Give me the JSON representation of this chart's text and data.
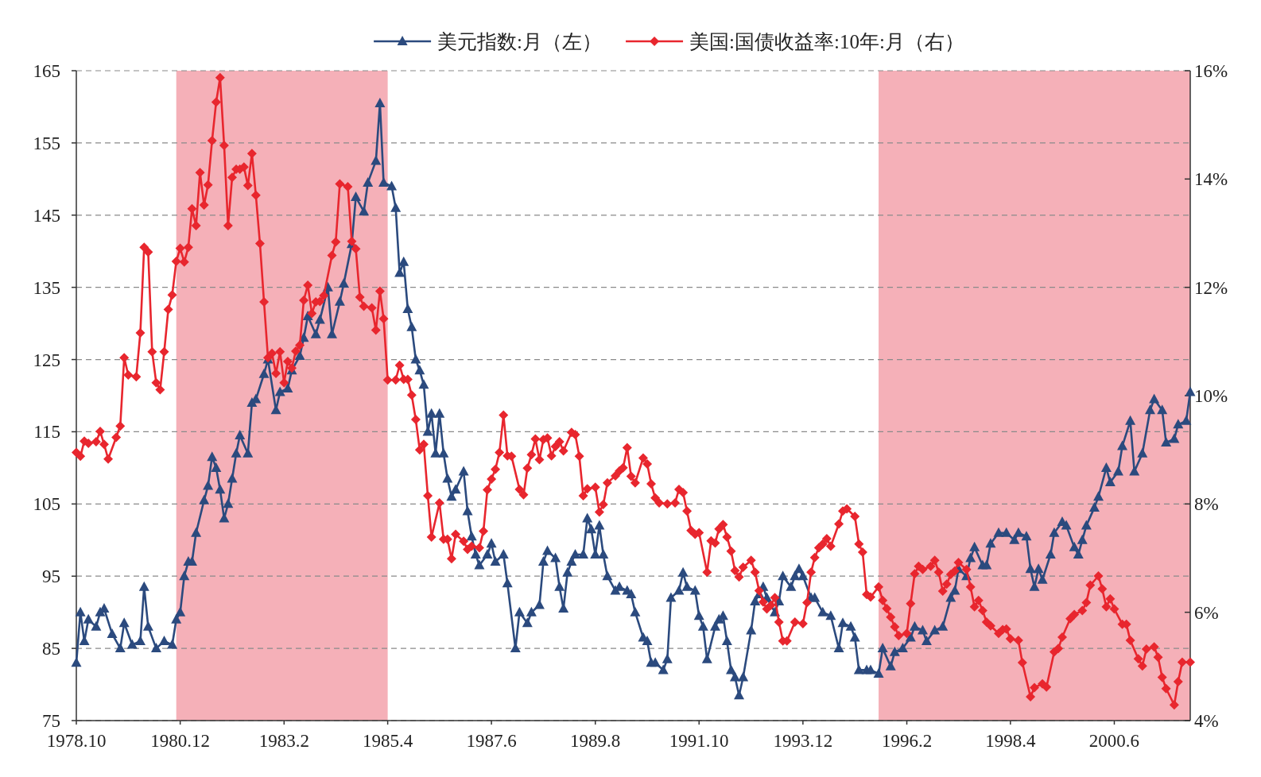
{
  "chart_data": {
    "type": "line",
    "xlim": [
      "1978-10",
      "2002-01"
    ],
    "xticks": [
      {
        "value": "1978-10",
        "label": "1978.10"
      },
      {
        "value": "1980-12",
        "label": "1980.12"
      },
      {
        "value": "1983-02",
        "label": "1983.2"
      },
      {
        "value": "1985-04",
        "label": "1985.4"
      },
      {
        "value": "1987-06",
        "label": "1987.6"
      },
      {
        "value": "1989-08",
        "label": "1989.8"
      },
      {
        "value": "1991-10",
        "label": "1991.10"
      },
      {
        "value": "1993-12",
        "label": "1993.12"
      },
      {
        "value": "1996-02",
        "label": "1996.2"
      },
      {
        "value": "1998-04",
        "label": "1998.4"
      },
      {
        "value": "2000-06",
        "label": "2000.6"
      }
    ],
    "ylim": [
      75,
      165
    ],
    "yticks": [
      75,
      85,
      95,
      105,
      115,
      125,
      135,
      145,
      155,
      165
    ],
    "y2lim": [
      4,
      16
    ],
    "y2ticks": [
      {
        "value": 4,
        "label": "4%"
      },
      {
        "value": 6,
        "label": "6%"
      },
      {
        "value": 8,
        "label": "8%"
      },
      {
        "value": 10,
        "label": "10%"
      },
      {
        "value": 12,
        "label": "12%"
      },
      {
        "value": 14,
        "label": "14%"
      },
      {
        "value": 16,
        "label": "16%"
      }
    ],
    "grid": "y",
    "legend": "top",
    "line_style": "solid",
    "bands": [
      {
        "axis": "x",
        "from": "1980-11",
        "to": "1985-04",
        "color": "#f5b0b8"
      },
      {
        "axis": "x",
        "from": "1995-07",
        "to": "2002-01",
        "color": "#f5b0b8"
      }
    ],
    "series": [
      {
        "name": "美元指数:月（左）",
        "color": "#2b4a7e",
        "marker": "triangle",
        "x": [
          "1978-10",
          "1978-11",
          "1978-12",
          "1979-01",
          "1979-03",
          "1979-04",
          "1979-05",
          "1979-07",
          "1979-09",
          "1979-10",
          "1979-12",
          "1980-02",
          "1980-03",
          "1980-04",
          "1980-06",
          "1980-08",
          "1980-10",
          "1980-11",
          "1980-12",
          "1981-01",
          "1981-02",
          "1981-03",
          "1981-04",
          "1981-06",
          "1981-07",
          "1981-08",
          "1981-09",
          "1981-10",
          "1981-11",
          "1981-12",
          "1982-01",
          "1982-02",
          "1982-03",
          "1982-05",
          "1982-06",
          "1982-07",
          "1982-09",
          "1982-10",
          "1982-12",
          "1983-01",
          "1983-03",
          "1983-04",
          "1983-06",
          "1983-07",
          "1983-08",
          "1983-10",
          "1983-11",
          "1984-01",
          "1984-02",
          "1984-04",
          "1984-05",
          "1984-07",
          "1984-08",
          "1984-10",
          "1984-11",
          "1985-01",
          "1985-02",
          "1985-03",
          "1985-05",
          "1985-06",
          "1985-07",
          "1985-08",
          "1985-09",
          "1985-10",
          "1985-11",
          "1985-12",
          "1986-01",
          "1986-02",
          "1986-03",
          "1986-04",
          "1986-05",
          "1986-06",
          "1986-07",
          "1986-08",
          "1986-09",
          "1986-11",
          "1986-12",
          "1987-01",
          "1987-02",
          "1987-03",
          "1987-05",
          "1987-06",
          "1987-07",
          "1987-09",
          "1987-10",
          "1987-12",
          "1988-01",
          "1988-03",
          "1988-04",
          "1988-06",
          "1988-07",
          "1988-08",
          "1988-10",
          "1988-11",
          "1988-12",
          "1989-01",
          "1989-02",
          "1989-03",
          "1989-05",
          "1989-06",
          "1989-07",
          "1989-08",
          "1989-09",
          "1989-10",
          "1989-11",
          "1990-01",
          "1990-02",
          "1990-04",
          "1990-05",
          "1990-06",
          "1990-08",
          "1990-09",
          "1990-10",
          "1990-11",
          "1991-01",
          "1991-02",
          "1991-03",
          "1991-05",
          "1991-06",
          "1991-07",
          "1991-09",
          "1991-10",
          "1991-11",
          "1991-12",
          "1992-02",
          "1992-03",
          "1992-04",
          "1992-05",
          "1992-06",
          "1992-07",
          "1992-08",
          "1992-09",
          "1992-11",
          "1992-12",
          "1993-01",
          "1993-02",
          "1993-03",
          "1993-05",
          "1993-06",
          "1993-07",
          "1993-09",
          "1993-10",
          "1993-11",
          "1993-12",
          "1994-02",
          "1994-03",
          "1994-05",
          "1994-07",
          "1994-09",
          "1994-10",
          "1994-12",
          "1995-01",
          "1995-02",
          "1995-04",
          "1995-05",
          "1995-07",
          "1995-08",
          "1995-10",
          "1995-11",
          "1996-01",
          "1996-03",
          "1996-04",
          "1996-06",
          "1996-07",
          "1996-09",
          "1996-11",
          "1997-01",
          "1997-02",
          "1997-03",
          "1997-05",
          "1997-06",
          "1997-07",
          "1997-09",
          "1997-10",
          "1997-11",
          "1998-01",
          "1998-03",
          "1998-05",
          "1998-06",
          "1998-08",
          "1998-09",
          "1998-10",
          "1998-11",
          "1998-12",
          "1999-02",
          "1999-03",
          "1999-05",
          "1999-06",
          "1999-08",
          "1999-09",
          "1999-10",
          "1999-11",
          "2000-01",
          "2000-02",
          "2000-04",
          "2000-05",
          "2000-07",
          "2000-08",
          "2000-10",
          "2000-11",
          "2001-01",
          "2001-03",
          "2001-04",
          "2001-06",
          "2001-07",
          "2001-09",
          "2001-10",
          "2001-12",
          "2002-01"
        ],
        "values": [
          83,
          90,
          86,
          89,
          88,
          90,
          90.5,
          87,
          85,
          88.5,
          85.5,
          86,
          93.5,
          88,
          85,
          86,
          85.5,
          89,
          90,
          95,
          97,
          97,
          101,
          105.5,
          107.5,
          111.5,
          110,
          107,
          103,
          105,
          108.5,
          112,
          114.5,
          112,
          119,
          119.5,
          123,
          125,
          118,
          120.5,
          121,
          123.5,
          125.5,
          128,
          131,
          128.5,
          130.5,
          135,
          128.5,
          133,
          135.5,
          141,
          147.5,
          145.5,
          149.5,
          152.5,
          160.5,
          149.5,
          149,
          146,
          137,
          138.5,
          132,
          129.5,
          125,
          123.5,
          121.5,
          115,
          117.5,
          112,
          117.5,
          112,
          108.5,
          106,
          107,
          109.5,
          104,
          100.5,
          98,
          96.5,
          98,
          99.5,
          97,
          98,
          94,
          85,
          90,
          88.5,
          90,
          91,
          97,
          98.5,
          97.5,
          93.5,
          90.5,
          95.5,
          97,
          98,
          98,
          103,
          101.5,
          98,
          102,
          98,
          95,
          93,
          93.5,
          93,
          92.5,
          90,
          86.5,
          86,
          83,
          83,
          82,
          83.5,
          92,
          93,
          95.5,
          93.5,
          93,
          89.5,
          88,
          83.5,
          88,
          89,
          89.5,
          86,
          82,
          81,
          78.5,
          81,
          87.5,
          91.5,
          92.5,
          93.5,
          92,
          90,
          91.5,
          95,
          93.5,
          95,
          96,
          95,
          92,
          92,
          90,
          89.5,
          85,
          88.5,
          88,
          86.5,
          82,
          82,
          82,
          81.5,
          85,
          82.5,
          84.5,
          85,
          86.5,
          88,
          87.5,
          86,
          87.5,
          88,
          92,
          93,
          96,
          95,
          97.5,
          99,
          96.5,
          96.5,
          99.5,
          101,
          101,
          100,
          101,
          100.5,
          96,
          93.5,
          96,
          94.5,
          98,
          101,
          102.5,
          102,
          99,
          98,
          100,
          102,
          104.5,
          106,
          110,
          108,
          109.5,
          113,
          116.5,
          109.5,
          112,
          118,
          119.5,
          118,
          113.5,
          114,
          116,
          116.5,
          120.5
        ]
      },
      {
        "name": "美国:国债收益率:10年:月（右）",
        "color": "#e8262e",
        "marker": "diamond",
        "axis": "y2",
        "x": [
          "1978-10",
          "1978-11",
          "1978-12",
          "1979-01",
          "1979-03",
          "1979-04",
          "1979-05",
          "1979-06",
          "1979-08",
          "1979-09",
          "1979-10",
          "1979-11",
          "1980-01",
          "1980-02",
          "1980-03",
          "1980-04",
          "1980-05",
          "1980-06",
          "1980-07",
          "1980-08",
          "1980-09",
          "1980-10",
          "1980-11",
          "1980-12",
          "1981-01",
          "1981-02",
          "1981-03",
          "1981-04",
          "1981-05",
          "1981-06",
          "1981-07",
          "1981-08",
          "1981-09",
          "1981-10",
          "1981-11",
          "1981-12",
          "1982-01",
          "1982-02",
          "1982-03",
          "1982-04",
          "1982-05",
          "1982-06",
          "1982-07",
          "1982-08",
          "1982-09",
          "1982-10",
          "1982-11",
          "1982-12",
          "1983-01",
          "1983-02",
          "1983-03",
          "1983-04",
          "1983-05",
          "1983-06",
          "1983-07",
          "1983-08",
          "1983-09",
          "1983-10",
          "1983-11",
          "1983-12",
          "1984-02",
          "1984-03",
          "1984-04",
          "1984-06",
          "1984-07",
          "1984-08",
          "1984-09",
          "1984-10",
          "1984-12",
          "1985-01",
          "1985-02",
          "1985-03",
          "1985-04",
          "1985-06",
          "1985-07",
          "1985-08",
          "1985-09",
          "1985-10",
          "1985-11",
          "1985-12",
          "1986-01",
          "1986-02",
          "1986-03",
          "1986-05",
          "1986-06",
          "1986-07",
          "1986-08",
          "1986-09",
          "1986-11",
          "1986-12",
          "1987-01",
          "1987-03",
          "1987-04",
          "1987-05",
          "1987-06",
          "1987-07",
          "1987-08",
          "1987-09",
          "1987-10",
          "1987-11",
          "1988-01",
          "1988-02",
          "1988-03",
          "1988-04",
          "1988-05",
          "1988-06",
          "1988-07",
          "1988-08",
          "1988-09",
          "1988-10",
          "1988-11",
          "1988-12",
          "1989-02",
          "1989-03",
          "1989-04",
          "1989-05",
          "1989-06",
          "1989-08",
          "1989-09",
          "1989-10",
          "1989-11",
          "1990-01",
          "1990-02",
          "1990-03",
          "1990-04",
          "1990-05",
          "1990-06",
          "1990-08",
          "1990-09",
          "1990-10",
          "1990-11",
          "1990-12",
          "1991-02",
          "1991-04",
          "1991-05",
          "1991-06",
          "1991-07",
          "1991-08",
          "1991-09",
          "1991-10",
          "1991-12",
          "1992-01",
          "1992-02",
          "1992-03",
          "1992-04",
          "1992-05",
          "1992-06",
          "1992-07",
          "1992-08",
          "1992-09",
          "1992-11",
          "1992-12",
          "1993-01",
          "1993-02",
          "1993-03",
          "1993-04",
          "1993-05",
          "1993-06",
          "1993-07",
          "1993-08",
          "1993-10",
          "1993-12",
          "1994-01",
          "1994-02",
          "1994-03",
          "1994-04",
          "1994-05",
          "1994-06",
          "1994-07",
          "1994-09",
          "1994-10",
          "1994-11",
          "1995-01",
          "1995-02",
          "1995-03",
          "1995-04",
          "1995-05",
          "1995-07",
          "1995-08",
          "1995-09",
          "1995-10",
          "1995-11",
          "1995-12",
          "1996-02",
          "1996-03",
          "1996-04",
          "1996-05",
          "1996-06",
          "1996-08",
          "1996-09",
          "1996-10",
          "1996-11",
          "1996-12",
          "1997-01",
          "1997-02",
          "1997-03",
          "1997-05",
          "1997-06",
          "1997-07",
          "1997-08",
          "1997-09",
          "1997-10",
          "1997-11",
          "1998-01",
          "1998-02",
          "1998-03",
          "1998-04",
          "1998-06",
          "1998-07",
          "1998-09",
          "1998-10",
          "1998-12",
          "1999-01",
          "1999-03",
          "1999-04",
          "1999-05",
          "1999-07",
          "1999-08",
          "1999-10",
          "1999-11",
          "1999-12",
          "2000-02",
          "2000-03",
          "2000-04",
          "2000-05",
          "2000-06",
          "2000-08",
          "2000-09",
          "2000-10",
          "2000-12",
          "2001-01",
          "2001-02",
          "2001-04",
          "2001-05",
          "2001-06",
          "2001-07",
          "2001-09",
          "2001-10",
          "2001-11",
          "2002-01"
        ],
        "values": [
          8.95,
          8.88,
          9.16,
          9.12,
          9.15,
          9.34,
          9.1,
          8.83,
          9.23,
          9.44,
          10.7,
          10.38,
          10.35,
          11.16,
          12.74,
          12.65,
          10.81,
          10.24,
          10.11,
          10.81,
          11.59,
          11.86,
          12.48,
          12.72,
          12.47,
          12.74,
          13.45,
          13.14,
          14.12,
          13.52,
          13.89,
          14.71,
          15.42,
          15.87,
          14.62,
          13.14,
          14.03,
          14.18,
          14.18,
          14.22,
          13.88,
          14.47,
          13.7,
          12.81,
          11.73,
          10.7,
          10.78,
          10.41,
          10.81,
          10.24,
          10.63,
          10.51,
          10.82,
          10.93,
          11.76,
          12.04,
          11.52,
          11.73,
          11.74,
          11.85,
          12.59,
          12.84,
          13.91,
          13.86,
          12.85,
          12.71,
          11.82,
          11.65,
          11.62,
          11.21,
          11.93,
          11.42,
          10.29,
          10.29,
          10.56,
          10.3,
          10.3,
          10.01,
          9.56,
          9.0,
          9.1,
          8.15,
          7.39,
          8.02,
          7.35,
          7.35,
          6.99,
          7.44,
          7.31,
          7.16,
          7.22,
          7.19,
          7.5,
          8.26,
          8.46,
          8.64,
          8.95,
          9.64,
          8.89,
          8.88,
          8.27,
          8.17,
          8.66,
          8.91,
          9.2,
          8.82,
          9.19,
          9.22,
          8.89,
          9.06,
          9.15,
          8.98,
          9.32,
          9.28,
          8.88,
          8.15,
          8.28,
          8.31,
          7.85,
          7.99,
          8.39,
          8.52,
          8.61,
          8.67,
          9.04,
          8.51,
          8.39,
          8.85,
          8.74,
          8.37,
          8.11,
          8.02,
          8.0,
          8.02,
          8.27,
          8.21,
          7.87,
          7.51,
          7.44,
          7.47,
          6.74,
          7.32,
          7.28,
          7.54,
          7.62,
          7.39,
          7.13,
          6.77,
          6.65,
          6.83,
          6.96,
          6.74,
          6.4,
          6.19,
          6.06,
          6.13,
          6.27,
          5.82,
          5.47,
          5.47,
          5.82,
          5.79,
          6.18,
          6.74,
          7.01,
          7.19,
          7.26,
          7.36,
          7.22,
          7.63,
          7.87,
          7.91,
          7.77,
          7.26,
          7.11,
          6.33,
          6.28,
          6.47,
          6.22,
          6.07,
          5.91,
          5.73,
          5.57,
          5.61,
          6.16,
          6.71,
          6.85,
          6.79,
          6.85,
          6.96,
          6.74,
          6.39,
          6.52,
          6.7,
          6.76,
          6.92,
          6.79,
          6.47,
          6.1,
          6.22,
          6.03,
          5.82,
          5.75,
          5.61,
          5.68,
          5.69,
          5.51,
          5.48,
          5.07,
          4.44,
          4.61,
          4.68,
          4.62,
          5.27,
          5.33,
          5.54,
          5.88,
          5.96,
          6.03,
          6.18,
          6.5,
          6.67,
          6.43,
          6.1,
          6.25,
          6.06,
          5.78,
          5.78,
          5.48,
          5.14,
          5.01,
          5.32,
          5.36,
          5.17,
          4.8,
          4.59,
          4.29,
          4.72,
          5.08,
          5.08
        ]
      }
    ]
  }
}
